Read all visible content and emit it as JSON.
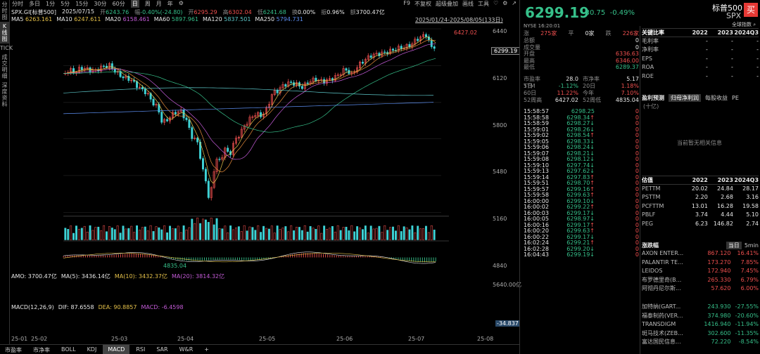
{
  "left_tabs": [
    "分时图",
    "K线图",
    "TICK",
    "成交明细",
    "深度资料"
  ],
  "toolbar": {
    "periods": [
      "分时",
      "多日",
      "1分",
      "5分",
      "15分",
      "30分",
      "60分",
      "日",
      "周",
      "月",
      "年",
      "⚙"
    ],
    "selected": "日",
    "right": [
      "F9",
      "不复权",
      "超级叠加",
      "画线",
      "工具",
      "♡",
      "⚙",
      "↗"
    ]
  },
  "stock_info": {
    "code": "SPX.GI[标普500]",
    "date": "2025/07/15",
    "open_label": "开",
    "open": "6243.76",
    "change_pct_label": "幅",
    "change_pct": "-0.40%(-24.80)",
    "high_label": "开",
    "high": "6295.29",
    "high2_label": "高",
    "high2": "6302.04",
    "low_label": "低",
    "low": "6241.68",
    "turnover_label": "换",
    "turnover": "0.00%",
    "amp_label": "振",
    "amp": "0.96%",
    "amount_label": "额",
    "amount": "3700.47亿"
  },
  "ma_info": [
    {
      "label": "MA5",
      "value": "6263.161",
      "color": "#e6c24a"
    },
    {
      "label": "MA10",
      "value": "6247.611",
      "color": "#e6c24a"
    },
    {
      "label": "MA20",
      "value": "6158.461",
      "color": "#c45bd8"
    },
    {
      "label": "MA60",
      "value": "5897.961",
      "color": "#36c08a"
    },
    {
      "label": "MA120",
      "value": "5837.501",
      "color": "#5cc7c9"
    },
    {
      "label": "MA250",
      "value": "5794.731",
      "color": "#5c8ef0"
    }
  ],
  "range_text": "2025/01/24-2025/08/05(133日)",
  "price_axis": [
    "6440",
    "6120",
    "5800",
    "5480",
    "5160",
    "4840"
  ],
  "current_price_tag": "6299.19",
  "high_marker": "6427.02",
  "low_marker": "4835.04",
  "volume": {
    "amo_label": "AMO: 3700.47亿",
    "ma5": "MA(5): 3436.14亿",
    "ma10": "MA(10): 3432.37亿",
    "ma20": "MA(20): 3814.32亿",
    "axis_top": "5640.00亿"
  },
  "macd": {
    "title": "MACD(12,26,9)",
    "dif": "DIF: 87.6558",
    "dea": "DEA: 90.8857",
    "macd": "MACD: -6.4598",
    "axis_val": "-34.837"
  },
  "dates": [
    "25-01",
    "25-02",
    "25-03",
    "25-04",
    "25-05",
    "25-06",
    "25-07",
    "25-08"
  ],
  "bottom_tabs": [
    "市盈率",
    "市净率",
    "BOLL",
    "KDJ",
    "MACD",
    "RSI",
    "SAR",
    "W&R",
    "+"
  ],
  "bottom_selected": "MACD",
  "quote": {
    "price": "6299.19",
    "change": "-30.75",
    "pct": "-0.49%",
    "name": "标普500",
    "code": "SPX",
    "search": "全球指数",
    "exchange": "NYSE",
    "time": "16:20:01"
  },
  "stats": {
    "up_label": "涨",
    "up": "275家",
    "flat_label": "平",
    "flat": "0家",
    "down_label": "跌",
    "down": "226家"
  },
  "fields": [
    {
      "l": "总额",
      "v": "0",
      "c": "#e8e8e8"
    },
    {
      "l": "成交量",
      "v": "0",
      "c": "#e8e8e8"
    },
    {
      "l": "开盘",
      "v": "6336.63",
      "c": "#f0504f"
    },
    {
      "l": "最高",
      "v": "6346.00",
      "c": "#f0504f"
    },
    {
      "l": "最低",
      "v": "6289.37",
      "c": "#36c08a"
    }
  ],
  "ratios": [
    {
      "a": "市盈率TTM",
      "b": "28.0",
      "c": "市净率",
      "d": "5.17",
      "bc": "#e8e8e8",
      "dc": "#e8e8e8"
    },
    {
      "a": "5日",
      "b": "-1.12%",
      "c": "20日",
      "d": "1.18%",
      "bc": "#36c08a",
      "dc": "#f0504f"
    },
    {
      "a": "60日",
      "b": "11.22%",
      "c": "今年",
      "d": "7.10%",
      "bc": "#f0504f",
      "dc": "#f0504f"
    },
    {
      "a": "52周高",
      "b": "6427.02",
      "c": "52周低",
      "d": "4835.04",
      "bc": "#e8e8e8",
      "dc": "#e8e8e8"
    }
  ],
  "ticks": [
    {
      "t": "15:58:57",
      "p": "6298.25",
      "a": "",
      "v": "0"
    },
    {
      "t": "15:58:58",
      "p": "6298.34",
      "a": "↑",
      "v": "0"
    },
    {
      "t": "15:58:59",
      "p": "6298.27",
      "a": "↓",
      "v": "0"
    },
    {
      "t": "15:59:01",
      "p": "6298.26",
      "a": "↓",
      "v": "0"
    },
    {
      "t": "15:59:02",
      "p": "6298.54",
      "a": "↑",
      "v": "0"
    },
    {
      "t": "15:59:05",
      "p": "6298.33",
      "a": "↓",
      "v": "0"
    },
    {
      "t": "15:59:06",
      "p": "6298.24",
      "a": "↓",
      "v": "0"
    },
    {
      "t": "15:59:07",
      "p": "6298.21",
      "a": "↓",
      "v": "0"
    },
    {
      "t": "15:59:08",
      "p": "6298.12",
      "a": "↓",
      "v": "0"
    },
    {
      "t": "15:59:10",
      "p": "6297.74",
      "a": "↓",
      "v": "0"
    },
    {
      "t": "15:59:13",
      "p": "6297.62",
      "a": "↓",
      "v": "0"
    },
    {
      "t": "15:59:14",
      "p": "6297.83",
      "a": "↑",
      "v": "0"
    },
    {
      "t": "15:59:51",
      "p": "6298.70",
      "a": "↑",
      "v": "0"
    },
    {
      "t": "15:59:57",
      "p": "6299.16",
      "a": "↑",
      "v": "0"
    },
    {
      "t": "15:59:58",
      "p": "6299.63",
      "a": "↑",
      "v": "0"
    },
    {
      "t": "16:00:00",
      "p": "6299.10",
      "a": "↓",
      "v": "0"
    },
    {
      "t": "16:00:02",
      "p": "6299.22",
      "a": "↑",
      "v": "0"
    },
    {
      "t": "16:00:03",
      "p": "6299.17",
      "a": "↓",
      "v": "0"
    },
    {
      "t": "16:00:05",
      "p": "6298.97",
      "a": "↓",
      "v": "0"
    },
    {
      "t": "16:00:16",
      "p": "6299.17",
      "a": "↑",
      "v": "0"
    },
    {
      "t": "16:00:20",
      "p": "6299.63",
      "a": "↑",
      "v": "0"
    },
    {
      "t": "16:00:22",
      "p": "6299.17",
      "a": "↓",
      "v": "0"
    },
    {
      "t": "16:02:24",
      "p": "6299.21",
      "a": "↑",
      "v": "0"
    },
    {
      "t": "16:02:28",
      "p": "6299.20",
      "a": "↓",
      "v": "0"
    },
    {
      "t": "16:04:43",
      "p": "6299.19",
      "a": "↓",
      "v": "0"
    }
  ],
  "key_ratios": {
    "title": "关键比率",
    "years": [
      "2022",
      "2023",
      "2024Q3"
    ],
    "rows": [
      [
        "毛利率",
        "-",
        "-",
        "-"
      ],
      [
        "净利率",
        "-",
        "-",
        "-"
      ],
      [
        "EPS",
        "-",
        "-",
        "-"
      ],
      [
        "ROA",
        "-",
        "-",
        "-"
      ],
      [
        "ROE",
        "-",
        "-",
        "-"
      ]
    ]
  },
  "forecast": {
    "title": "盈利预测",
    "unit": "(十亿)",
    "tabs": [
      "归母净利润",
      "每股收益",
      "PE"
    ],
    "empty": "当前暂无相关信息"
  },
  "valuation": {
    "title": "估值",
    "years": [
      "2022",
      "2023",
      "2024Q3"
    ],
    "rows": [
      [
        "PETTM",
        "20.02",
        "24.84",
        "28.17"
      ],
      [
        "PSTTM",
        "2.20",
        "2.68",
        "3.16"
      ],
      [
        "PCFTTM",
        "13.01",
        "16.28",
        "19.58"
      ],
      [
        "PBLF",
        "3.74",
        "4.44",
        "5.10"
      ],
      [
        "PEG",
        "6.23",
        "146.82",
        "2.74"
      ]
    ]
  },
  "movers": {
    "title": "涨跌幅",
    "tabs": [
      "当日",
      "5min"
    ],
    "up": [
      [
        "AXON ENTER...",
        "867.120",
        "16.41%"
      ],
      [
        "PALANTIR TE...",
        "173.270",
        "7.85%"
      ],
      [
        "LEIDOS",
        "172.940",
        "7.45%"
      ],
      [
        "布罗德里奇(B...",
        "265.330",
        "6.79%"
      ],
      [
        "阿彻丹尼尔斯...",
        "57.620",
        "6.00%"
      ]
    ],
    "down": [
      [
        "加特纳(GART...",
        "243.930",
        "-27.55%"
      ],
      [
        "福泰制药(VER...",
        "374.980",
        "-20.60%"
      ],
      [
        "TRANSDIGM",
        "1416.940",
        "-11.94%"
      ],
      [
        "斑马技术(ZEB...",
        "302.600",
        "-11.35%"
      ],
      [
        "富达国民信息...",
        "72.220",
        "-8.54%"
      ]
    ]
  }
}
